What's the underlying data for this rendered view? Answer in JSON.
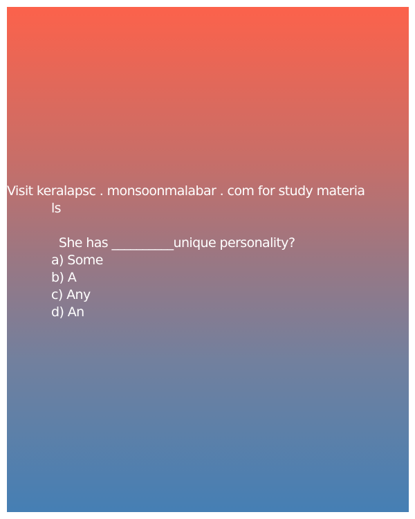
{
  "header_line1": "Visit keralapsc . monsoonmalabar . com for study materia",
  "header_line2": "ls",
  "question": "  She has __________unique personality?",
  "options": [
    "a) Some",
    "b) A",
    "c) Any",
    "d) An"
  ],
  "colors": {
    "gradient_top": "#fc624b",
    "gradient_bottom": "#457fb4",
    "text": "#ffffff"
  }
}
